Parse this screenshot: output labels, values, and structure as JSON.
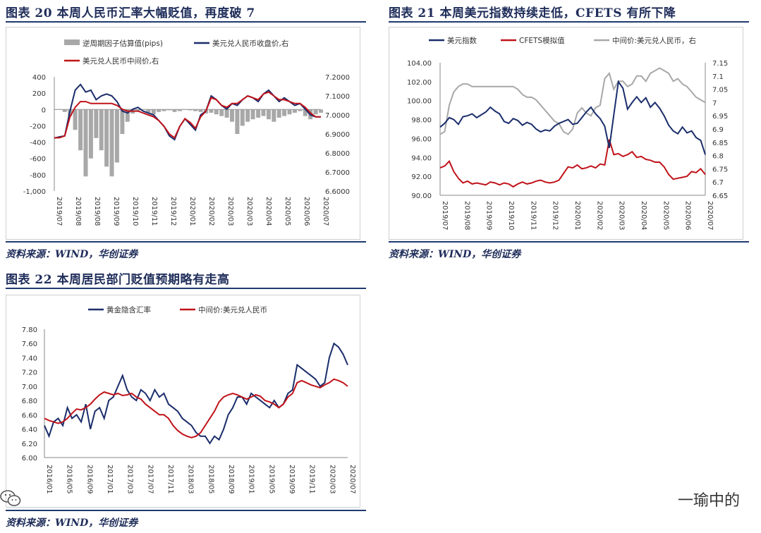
{
  "fig20": {
    "title": "图表 20 本周人民币汇率大幅贬值，再度破 7",
    "source": "资料来源：WIND，华创证券",
    "legend": [
      "逆周期因子估算值(pips)",
      "美元兑人民币收盘价,右",
      "美元兑人民币中间价,右"
    ],
    "yleft_ticks": [
      "400",
      "200",
      "0",
      "-200",
      "-400",
      "-600",
      "-800",
      "-1,000"
    ],
    "yright_ticks": [
      "7.2000",
      "7.1000",
      "7.0000",
      "6.9000",
      "6.8000",
      "6.7000",
      "6.6000"
    ],
    "xticks": [
      "2019/07",
      "2019/08",
      "2019/08",
      "2019/09",
      "2019/10",
      "2019/11",
      "2019/12",
      "2020/01",
      "2020/02",
      "2020/03",
      "2020/03",
      "2020/04",
      "2020/05",
      "2020/06",
      "2020/07"
    ]
  },
  "fig21": {
    "title": "图表 21 本周美元指数持续走低，CFETS 有所下降",
    "source": "资料来源：WIND，华创证券",
    "legend": [
      "美元指数",
      "CFETS模拟值",
      "中间价:美元兑人民币，右"
    ],
    "yleft_ticks": [
      "104.00",
      "102.00",
      "100.00",
      "98.00",
      "96.00",
      "94.00",
      "92.00",
      "90.00"
    ],
    "yright_ticks": [
      "7.15",
      "7.1",
      "7.05",
      "7",
      "6.95",
      "6.9",
      "6.85",
      "6.8",
      "6.75",
      "6.7",
      "6.65"
    ],
    "xticks": [
      "2019/07",
      "2019/08",
      "2019/09",
      "2019/10",
      "2019/11",
      "2019/12",
      "2020/01",
      "2020/02",
      "2020/03",
      "2020/04",
      "2020/05",
      "2020/06",
      "2020/07"
    ]
  },
  "fig22": {
    "title": "图表 22 本周居民部门贬值预期略有走高",
    "source": "资料来源：WIND，华创证券",
    "legend": [
      "黄金隐含汇率",
      "中间价:美元兑人民币"
    ],
    "y_ticks": [
      "7.80",
      "7.60",
      "7.40",
      "7.20",
      "7.00",
      "6.80",
      "6.60",
      "6.40",
      "6.20",
      "6.00"
    ],
    "xticks": [
      "2016/01",
      "2016/05",
      "2016/09",
      "2017/01",
      "2017/03",
      "2017/07",
      "2017/11",
      "2018/03",
      "2018/05",
      "2018/09",
      "2019/01",
      "2019/05",
      "2019/09",
      "2019/11",
      "2020/03",
      "2020/07"
    ]
  },
  "watermark": "一瑜中的",
  "colors": {
    "navy": "#1a2d6b",
    "red": "#c0131a",
    "gray": "#a8a8a8",
    "title": "#1f2d5a"
  },
  "chart_data": [
    {
      "type": "line",
      "title": "本周人民币汇率大幅贬值，再度破 7",
      "series": [
        {
          "name": "逆周期因子估算值(pips)",
          "kind": "area",
          "axis": "left",
          "values": [
            0,
            0,
            -30,
            -80,
            -250,
            -500,
            -820,
            -600,
            -350,
            -500,
            -700,
            -820,
            -650,
            -300,
            -150,
            -50,
            -20,
            0,
            -40,
            -60,
            -30,
            -20,
            -10,
            -30,
            -20,
            0,
            -10,
            -20,
            -30,
            -50,
            -40,
            -60,
            -80,
            -100,
            -150,
            -300,
            -200,
            -150,
            -120,
            -100,
            -80,
            -120,
            -150,
            -100,
            -80,
            -60,
            -40,
            -20,
            -80,
            -120,
            -60,
            -40
          ]
        },
        {
          "name": "美元兑人民币收盘价,右",
          "kind": "line",
          "axis": "right",
          "values": [
            6.878,
            6.885,
            6.89,
            7.02,
            7.13,
            7.16,
            7.12,
            7.13,
            7.08,
            7.1,
            7.11,
            7.1,
            7.07,
            7.02,
            7.01,
            7.03,
            7.04,
            7.02,
            7.01,
            7.0,
            6.97,
            6.94,
            6.89,
            6.87,
            6.94,
            6.98,
            6.95,
            6.92,
            7.0,
            7.02,
            7.1,
            7.08,
            7.05,
            7.03,
            7.06,
            7.05,
            7.08,
            7.1,
            7.09,
            7.07,
            7.11,
            7.13,
            7.1,
            7.07,
            7.09,
            7.07,
            7.05,
            7.06,
            7.03,
            7.0,
            6.99,
            6.99
          ]
        },
        {
          "name": "美元兑人民币中间价,右",
          "kind": "line",
          "axis": "right",
          "values": [
            6.88,
            6.88,
            6.89,
            6.99,
            7.04,
            7.07,
            7.07,
            7.06,
            7.06,
            7.06,
            7.06,
            7.06,
            7.05,
            7.03,
            7.02,
            7.02,
            7.02,
            7.01,
            7.0,
            6.99,
            6.97,
            6.94,
            6.9,
            6.88,
            6.94,
            6.98,
            6.96,
            6.93,
            6.99,
            7.02,
            7.09,
            7.08,
            7.05,
            7.04,
            7.06,
            7.06,
            7.08,
            7.1,
            7.09,
            7.08,
            7.11,
            7.12,
            7.1,
            7.08,
            7.08,
            7.07,
            7.06,
            7.06,
            7.04,
            7.01,
            6.99,
            6.99
          ]
        }
      ],
      "yleft_lim": [
        -1000,
        400
      ],
      "yright_lim": [
        6.6,
        7.2
      ]
    },
    {
      "type": "line",
      "title": "本周美元指数持续走低，CFETS 有所下降",
      "series": [
        {
          "name": "美元指数",
          "axis": "left",
          "values": [
            97.2,
            97.6,
            98.2,
            98.0,
            97.5,
            98.3,
            98.4,
            98.6,
            98.2,
            98.5,
            98.8,
            99.3,
            98.9,
            98.6,
            97.8,
            97.6,
            98.1,
            97.9,
            97.4,
            97.7,
            97.5,
            97.0,
            96.7,
            96.9,
            96.8,
            97.3,
            97.6,
            97.8,
            98.0,
            97.5,
            97.6,
            98.2,
            98.8,
            99.3,
            98.6,
            98.1,
            97.3,
            95.0,
            98.5,
            102.0,
            101.3,
            99.1,
            99.8,
            100.4,
            99.8,
            100.3,
            99.3,
            99.8,
            99.2,
            98.4,
            97.4,
            96.8,
            96.5,
            97.2,
            96.6,
            96.8,
            96.1,
            95.8,
            94.3
          ]
        },
        {
          "name": "CFETS模拟值",
          "axis": "left",
          "values": [
            92.9,
            93.1,
            93.6,
            92.5,
            91.8,
            91.3,
            91.5,
            91.2,
            91.3,
            91.2,
            91.1,
            91.4,
            91.3,
            91.1,
            91.3,
            91.2,
            90.9,
            91.2,
            91.4,
            91.2,
            91.3,
            91.5,
            91.6,
            91.4,
            91.3,
            91.4,
            91.6,
            92.3,
            93.0,
            92.9,
            93.2,
            92.8,
            92.9,
            93.1,
            92.9,
            93.3,
            93.2,
            95.9,
            94.3,
            94.4,
            94.1,
            94.3,
            94.6,
            94.0,
            94.1,
            93.8,
            93.7,
            93.5,
            93.5,
            93.0,
            92.2,
            91.7,
            91.8,
            91.9,
            92.0,
            92.5,
            92.4,
            92.8,
            92.2
          ]
        },
        {
          "name": "中间价:美元兑人民币，右",
          "axis": "right",
          "values": [
            6.88,
            6.89,
            6.99,
            7.04,
            7.06,
            7.07,
            7.07,
            7.06,
            7.06,
            7.06,
            7.06,
            7.06,
            7.06,
            7.06,
            7.06,
            7.06,
            7.06,
            7.05,
            7.03,
            7.02,
            7.02,
            7.01,
            6.99,
            6.97,
            6.95,
            6.93,
            6.92,
            6.89,
            6.88,
            6.9,
            6.96,
            6.98,
            6.96,
            6.95,
            6.98,
            6.99,
            7.09,
            7.11,
            7.05,
            7.08,
            7.08,
            7.06,
            7.07,
            7.1,
            7.1,
            7.08,
            7.11,
            7.12,
            7.13,
            7.12,
            7.11,
            7.08,
            7.09,
            7.07,
            7.06,
            7.04,
            7.02,
            7.01,
            7.0
          ]
        }
      ],
      "yleft_lim": [
        90,
        104
      ],
      "yright_lim": [
        6.65,
        7.15
      ]
    },
    {
      "type": "line",
      "title": "本周居民部门贬值预期略有走高",
      "series": [
        {
          "name": "黄金隐含汇率",
          "values": [
            6.45,
            6.3,
            6.5,
            6.55,
            6.45,
            6.7,
            6.55,
            6.6,
            6.5,
            6.75,
            6.4,
            6.65,
            6.7,
            6.55,
            6.8,
            6.85,
            7.0,
            7.15,
            6.95,
            6.85,
            6.8,
            6.95,
            6.9,
            6.8,
            6.95,
            6.85,
            6.9,
            6.75,
            6.7,
            6.65,
            6.55,
            6.5,
            6.45,
            6.35,
            6.3,
            6.3,
            6.2,
            6.3,
            6.25,
            6.4,
            6.6,
            6.7,
            6.85,
            6.85,
            6.75,
            6.9,
            6.85,
            6.8,
            6.75,
            6.7,
            6.8,
            6.7,
            6.75,
            6.9,
            6.95,
            7.3,
            7.25,
            7.2,
            7.15,
            7.1,
            7.0,
            7.05,
            7.4,
            7.6,
            7.55,
            7.45,
            7.3
          ]
        },
        {
          "name": "中间价:美元兑人民币",
          "values": [
            6.55,
            6.52,
            6.5,
            6.48,
            6.5,
            6.55,
            6.62,
            6.68,
            6.67,
            6.7,
            6.75,
            6.82,
            6.88,
            6.92,
            6.9,
            6.88,
            6.9,
            6.87,
            6.88,
            6.9,
            6.85,
            6.82,
            6.75,
            6.7,
            6.65,
            6.6,
            6.6,
            6.55,
            6.45,
            6.38,
            6.33,
            6.3,
            6.28,
            6.3,
            6.35,
            6.45,
            6.55,
            6.65,
            6.78,
            6.85,
            6.88,
            6.9,
            6.88,
            6.85,
            6.82,
            6.85,
            6.88,
            6.86,
            6.8,
            6.78,
            6.75,
            6.7,
            6.75,
            6.85,
            6.9,
            7.05,
            7.08,
            7.05,
            7.02,
            7.0,
            6.98,
            7.02,
            7.05,
            7.1,
            7.08,
            7.05,
            7.0
          ]
        }
      ],
      "ylim": [
        6.0,
        7.8
      ]
    }
  ]
}
